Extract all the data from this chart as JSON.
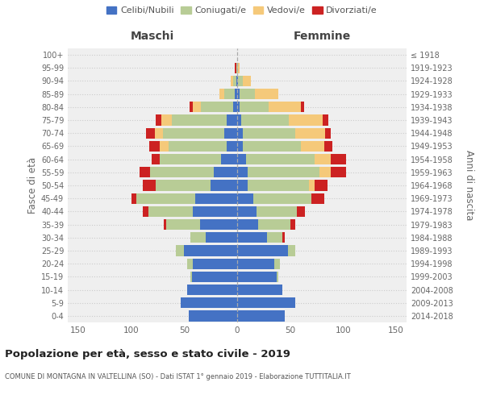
{
  "age_groups": [
    "0-4",
    "5-9",
    "10-14",
    "15-19",
    "20-24",
    "25-29",
    "30-34",
    "35-39",
    "40-44",
    "45-49",
    "50-54",
    "55-59",
    "60-64",
    "65-69",
    "70-74",
    "75-79",
    "80-84",
    "85-89",
    "90-94",
    "95-99",
    "100+"
  ],
  "birth_years": [
    "2014-2018",
    "2009-2013",
    "2004-2008",
    "1999-2003",
    "1994-1998",
    "1989-1993",
    "1984-1988",
    "1979-1983",
    "1974-1978",
    "1969-1973",
    "1964-1968",
    "1959-1963",
    "1954-1958",
    "1949-1953",
    "1944-1948",
    "1939-1943",
    "1934-1938",
    "1929-1933",
    "1924-1928",
    "1919-1923",
    "≤ 1918"
  ],
  "colors": {
    "celibe": "#4472c4",
    "coniugato": "#b8cc96",
    "vedovo": "#f5c97a",
    "divorziato": "#cc2222"
  },
  "maschi": {
    "celibe": [
      46,
      53,
      47,
      43,
      42,
      50,
      30,
      35,
      42,
      40,
      25,
      22,
      15,
      10,
      12,
      10,
      4,
      2,
      1,
      0,
      0
    ],
    "coniugato": [
      0,
      0,
      0,
      1,
      5,
      8,
      14,
      32,
      42,
      55,
      52,
      60,
      58,
      55,
      58,
      52,
      30,
      10,
      3,
      1,
      0
    ],
    "vedovo": [
      0,
      0,
      0,
      0,
      0,
      0,
      0,
      0,
      0,
      0,
      0,
      0,
      0,
      8,
      8,
      10,
      8,
      5,
      2,
      0,
      0
    ],
    "divorziato": [
      0,
      0,
      0,
      0,
      0,
      0,
      0,
      2,
      5,
      5,
      12,
      10,
      8,
      10,
      8,
      5,
      3,
      0,
      0,
      1,
      0
    ]
  },
  "femmine": {
    "nubile": [
      45,
      55,
      43,
      37,
      35,
      48,
      28,
      20,
      18,
      15,
      10,
      10,
      8,
      5,
      5,
      4,
      2,
      2,
      1,
      0,
      0
    ],
    "coniugata": [
      0,
      0,
      0,
      2,
      5,
      7,
      15,
      30,
      38,
      55,
      58,
      68,
      65,
      55,
      50,
      45,
      28,
      15,
      4,
      1,
      0
    ],
    "vedova": [
      0,
      0,
      0,
      0,
      0,
      0,
      0,
      0,
      0,
      0,
      5,
      10,
      15,
      22,
      28,
      32,
      30,
      22,
      8,
      1,
      0
    ],
    "divorziata": [
      0,
      0,
      0,
      0,
      0,
      0,
      2,
      5,
      8,
      12,
      12,
      15,
      15,
      8,
      5,
      5,
      3,
      0,
      0,
      0,
      0
    ]
  },
  "title": "Popolazione per età, sesso e stato civile - 2019",
  "subtitle": "COMUNE DI MONTAGNA IN VALTELLINA (SO) - Dati ISTAT 1° gennaio 2019 - Elaborazione TUTTITALIA.IT",
  "xlabel_left": "Maschi",
  "xlabel_right": "Femmine",
  "ylabel_left": "Fasce di età",
  "ylabel_right": "Anni di nascita",
  "xlim": 160,
  "legend_labels": [
    "Celibi/Nubili",
    "Coniugati/e",
    "Vedovi/e",
    "Divorziati/e"
  ],
  "bg_color": "#efefef",
  "grid_color": "#cccccc"
}
